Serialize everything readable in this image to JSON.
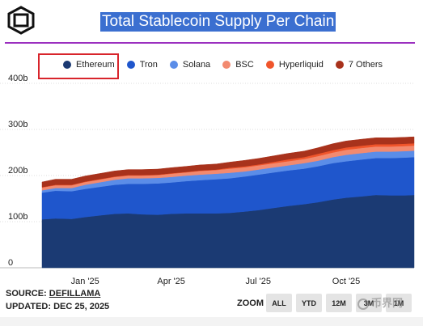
{
  "header": {
    "title": "Total Stablecoin Supply Per Chain"
  },
  "legend": [
    {
      "label": "Ethereum",
      "color": "#1b3a73"
    },
    {
      "label": "Tron",
      "color": "#1f56cc"
    },
    {
      "label": "Solana",
      "color": "#5b8de8"
    },
    {
      "label": "BSC",
      "color": "#f28a70"
    },
    {
      "label": "Hyperliquid",
      "color": "#f0552b"
    },
    {
      "label": "7 Others",
      "color": "#a8321c"
    }
  ],
  "chart_data": {
    "type": "area",
    "stacked": true,
    "title": "Total Stablecoin Supply Per Chain",
    "xlabel": "",
    "ylabel": "",
    "ylim": [
      0,
      400
    ],
    "y_unit": "b",
    "y_ticks": [
      "0",
      "100b",
      "200b",
      "300b",
      "400b"
    ],
    "x_ticks": [
      "Jan '25",
      "Apr '25",
      "Jul '25",
      "Oct '25"
    ],
    "x": [
      "2024-12-01",
      "2024-12-15",
      "2025-01-01",
      "2025-01-15",
      "2025-02-01",
      "2025-02-15",
      "2025-03-01",
      "2025-03-15",
      "2025-04-01",
      "2025-04-15",
      "2025-05-01",
      "2025-05-15",
      "2025-06-01",
      "2025-06-15",
      "2025-07-01",
      "2025-07-15",
      "2025-08-01",
      "2025-08-15",
      "2025-09-01",
      "2025-09-15",
      "2025-10-01",
      "2025-10-15",
      "2025-11-01",
      "2025-11-15",
      "2025-12-01",
      "2025-12-15",
      "2025-12-25"
    ],
    "series": [
      {
        "name": "Ethereum",
        "values": [
          105,
          107,
          106,
          110,
          114,
          117,
          118,
          116,
          115,
          117,
          118,
          118,
          118,
          119,
          122,
          125,
          130,
          134,
          138,
          142,
          148,
          152,
          155,
          158,
          157,
          157,
          158
        ]
      },
      {
        "name": "Tron",
        "values": [
          58,
          60,
          60,
          61,
          62,
          63,
          64,
          66,
          68,
          68,
          70,
          72,
          74,
          75,
          76,
          77,
          77,
          77,
          77,
          78,
          79,
          79,
          80,
          80,
          81,
          82,
          82
        ]
      },
      {
        "name": "Solana",
        "values": [
          5,
          6,
          7,
          9,
          10,
          11,
          12,
          12,
          12,
          12,
          12,
          12,
          12,
          12,
          11,
          11,
          11,
          11,
          12,
          12,
          13,
          14,
          14,
          14,
          14,
          14,
          14
        ]
      },
      {
        "name": "BSC",
        "values": [
          6,
          6,
          6,
          6,
          6,
          6,
          6,
          6,
          6,
          7,
          7,
          8,
          8,
          9,
          9,
          9,
          9,
          9,
          9,
          10,
          10,
          11,
          11,
          11,
          11,
          11,
          11
        ]
      },
      {
        "name": "Hyperliquid",
        "values": [
          1,
          1,
          1,
          1,
          1,
          1,
          1,
          1,
          1,
          1,
          1,
          1,
          1,
          2,
          2,
          2,
          3,
          4,
          4,
          5,
          5,
          5,
          5,
          5,
          5,
          5,
          5
        ]
      },
      {
        "name": "7 Others",
        "values": [
          11,
          12,
          12,
          12,
          12,
          12,
          12,
          12,
          12,
          12,
          12,
          12,
          12,
          12,
          13,
          13,
          13,
          13,
          13,
          13,
          14,
          14,
          14,
          14,
          14,
          14,
          14
        ]
      }
    ]
  },
  "footer": {
    "source_label": "SOURCE:",
    "source_value": "DEFILLAMA",
    "updated_label": "UPDATED:",
    "updated_value": "DEC 25, 2025"
  },
  "zoom": {
    "label": "ZOOM",
    "buttons": [
      "ALL",
      "YTD",
      "12M",
      "3M",
      "1M"
    ]
  },
  "watermark": "币界网"
}
